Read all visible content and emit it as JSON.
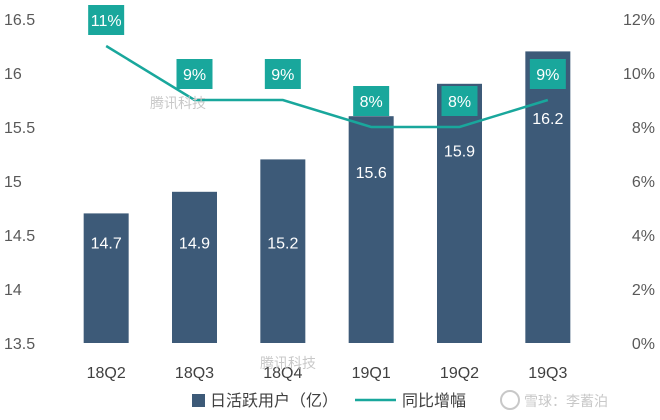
{
  "chart_data": {
    "type": "bar",
    "categories": [
      "18Q2",
      "18Q3",
      "18Q4",
      "19Q1",
      "19Q2",
      "19Q3"
    ],
    "series": [
      {
        "name": "日活跃用户（亿）",
        "type": "bar",
        "axis": "left",
        "values": [
          14.7,
          14.9,
          15.2,
          15.6,
          15.9,
          16.2
        ],
        "labels": [
          "14.7",
          "14.9",
          "15.2",
          "15.6",
          "15.9",
          "16.2"
        ],
        "color": "#3d5a78"
      },
      {
        "name": "同比增幅",
        "type": "line",
        "axis": "right",
        "values": [
          11,
          9,
          9,
          8,
          8,
          9
        ],
        "labels": [
          "11%",
          "9%",
          "9%",
          "8%",
          "8%",
          "9%"
        ],
        "color": "#19a79c"
      }
    ],
    "y_left": {
      "min": 13.5,
      "max": 16.5,
      "ticks": [
        "13.5",
        "14",
        "14.5",
        "15",
        "15.5",
        "16",
        "16.5"
      ]
    },
    "y_right": {
      "min": 0,
      "max": 12,
      "ticks": [
        "0%",
        "2%",
        "4%",
        "6%",
        "8%",
        "10%",
        "12%"
      ]
    },
    "legend_position": "bottom"
  },
  "watermarks": [
    "腾讯科技",
    "腾讯科技",
    "雪球：李蓄泊"
  ]
}
